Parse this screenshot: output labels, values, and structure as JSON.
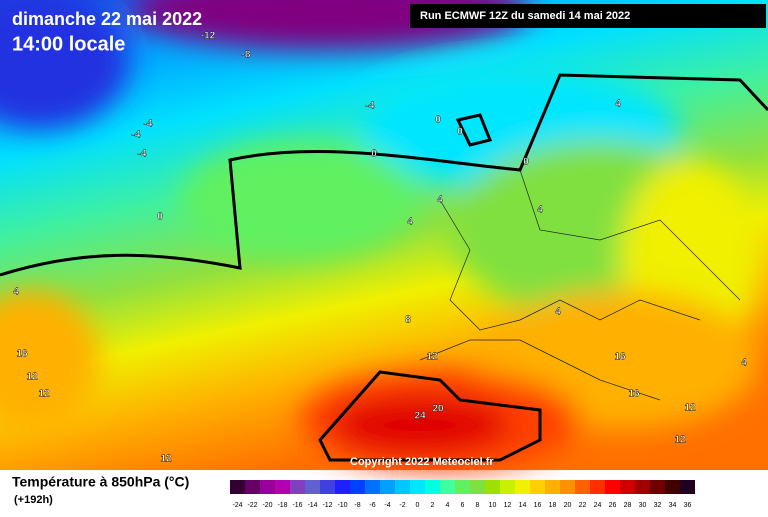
{
  "header": {
    "date": "dimanche 22 mai 2022",
    "time": "14:00 locale",
    "run": "Run ECMWF 12Z du samedi 14 mai 2022"
  },
  "map": {
    "copyright": "Copyright 2022 Meteociel.fr",
    "contour_labels": [
      -12,
      -8,
      -4,
      -4,
      -4,
      -4,
      0,
      0,
      0,
      0,
      0,
      4,
      4,
      4,
      4,
      4,
      8,
      12,
      12,
      12,
      12,
      16,
      16,
      16,
      20,
      24,
      12,
      4,
      12,
      4
    ]
  },
  "legend": {
    "title": "Température à 850hPa (°C)",
    "lead": "(+192h)",
    "ticks": [
      -24,
      -22,
      -20,
      -18,
      -16,
      -14,
      -12,
      -10,
      -8,
      -6,
      -4,
      -2,
      0,
      2,
      4,
      6,
      8,
      10,
      12,
      14,
      16,
      18,
      20,
      22,
      24,
      26,
      28,
      30,
      32,
      34,
      36
    ],
    "colors": [
      "#330033",
      "#660066",
      "#990099",
      "#b300b3",
      "#8040c0",
      "#6060d0",
      "#4040e0",
      "#2020ff",
      "#0040ff",
      "#0070ff",
      "#00a0ff",
      "#00c8ff",
      "#00e6ff",
      "#00ffe0",
      "#40ffa0",
      "#60f060",
      "#80e040",
      "#a0e000",
      "#c8f000",
      "#f0f000",
      "#ffd000",
      "#ffb000",
      "#ff9000",
      "#ff6000",
      "#ff3000",
      "#ff0000",
      "#d00000",
      "#a00000",
      "#700000",
      "#400000",
      "#200020"
    ]
  }
}
